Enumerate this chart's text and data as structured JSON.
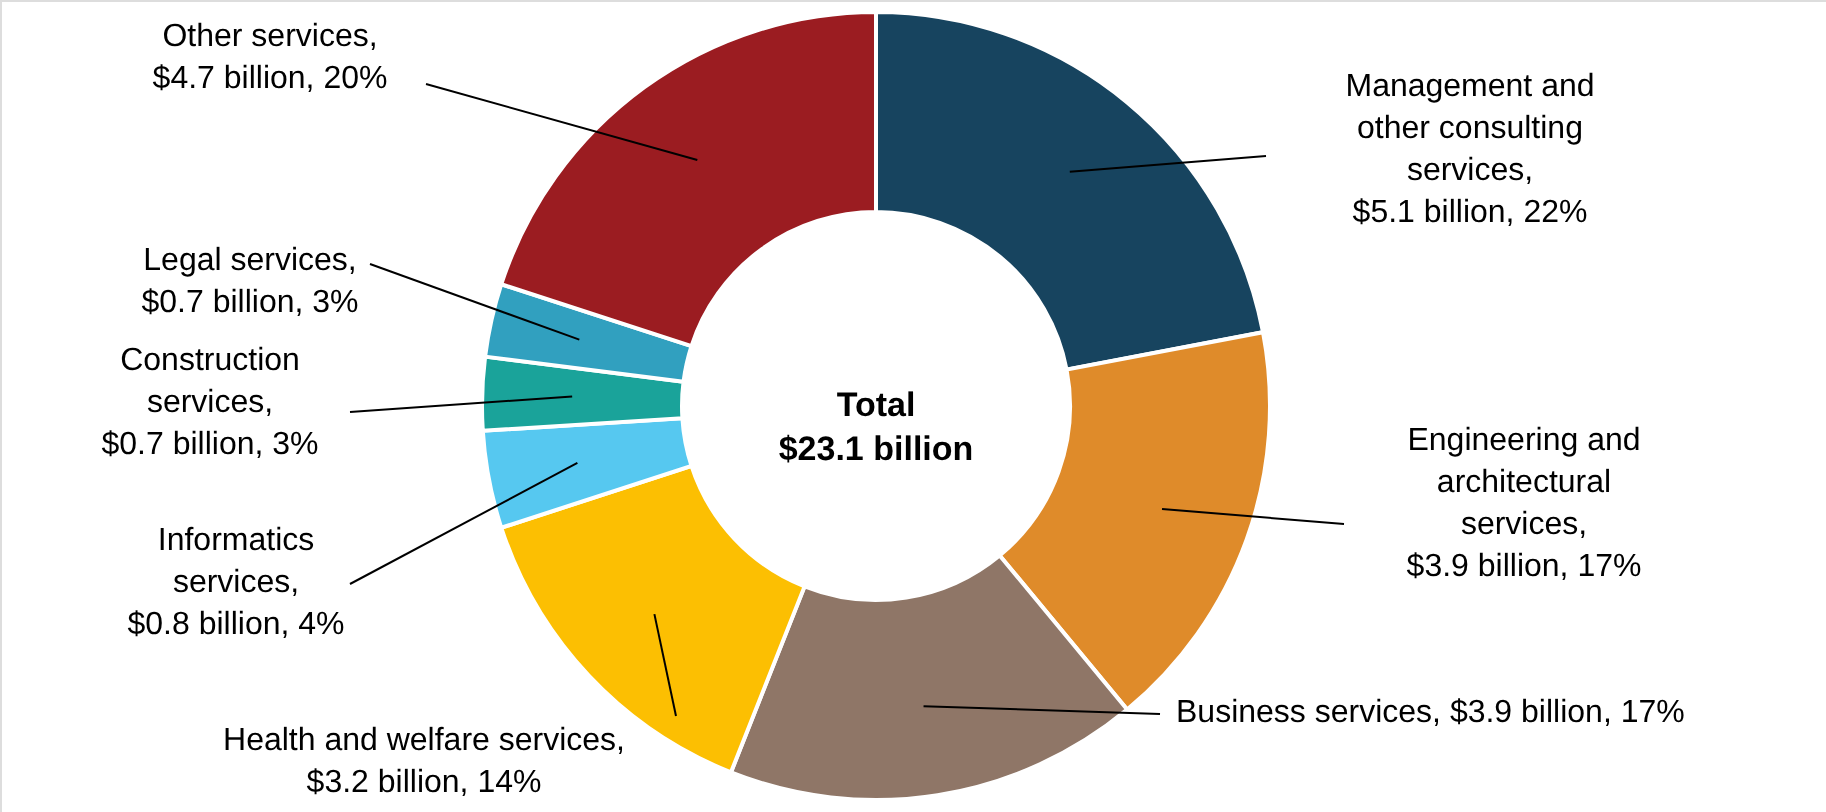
{
  "chart_data": {
    "type": "donut",
    "categories": [
      "Management and other consulting services",
      "Engineering and architectural services",
      "Business services",
      "Health and welfare services",
      "Informatics services",
      "Construction services",
      "Legal services",
      "Other services"
    ],
    "values": [
      22,
      17,
      17,
      14,
      4,
      3,
      3,
      20
    ],
    "colors": [
      "#17445f",
      "#df8b2a",
      "#8f7667",
      "#fcbf02",
      "#56c8f0",
      "#1aa39a",
      "#31a0bf",
      "#9b1c21"
    ],
    "value_labels": [
      ",\n$5.1 billion, 22%",
      ",\n$3.9 billion, 17%",
      ", $3.9 billion, 17%",
      ",\n$3.2 billion, 14%",
      ",\n$0.8 billion, 4%",
      ",\n$0.7 billion, 3%",
      ",\n$0.7 billion, 3%",
      ",\n$4.7 billion, 20%"
    ],
    "annotations": [
      "Total\n$23.1 billion"
    ]
  }
}
